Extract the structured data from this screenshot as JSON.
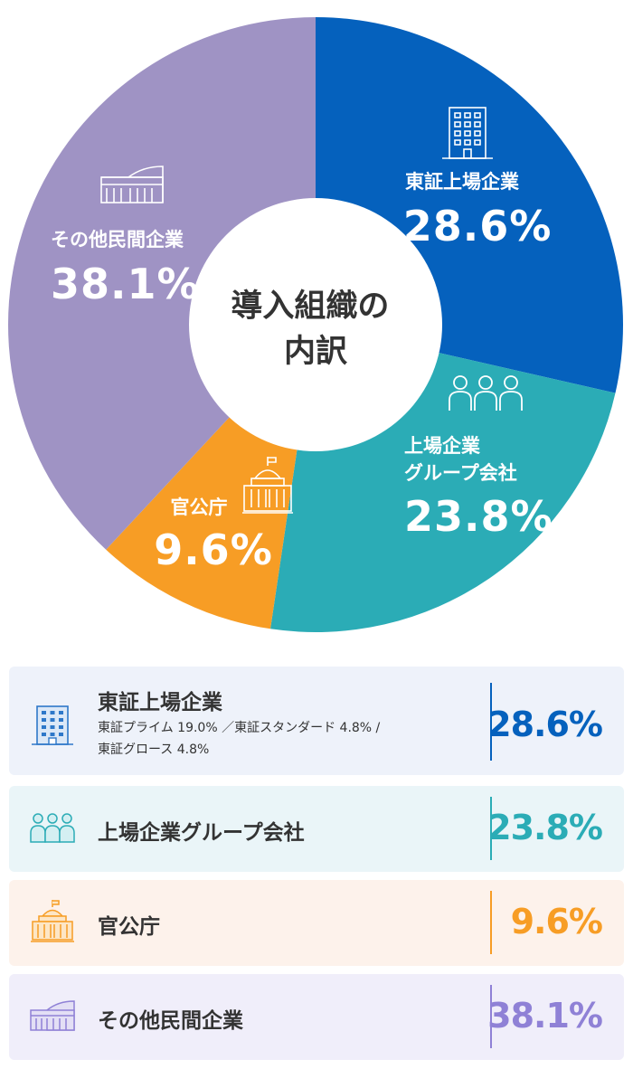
{
  "chart_data": {
    "type": "pie",
    "title": "導入組織の\n内訳",
    "unit": "%",
    "slices": [
      {
        "label": "東証上場企業",
        "value": 28.6,
        "value_label": "28.6%",
        "color": "#0561bd",
        "icon": "office-building-icon"
      },
      {
        "label": "上場企業\nグループ会社",
        "value": 23.8,
        "value_label": "23.8%",
        "color": "#2bacb6",
        "icon": "people-group-icon"
      },
      {
        "label": "官公庁",
        "value": 9.6,
        "value_label": "9.6%",
        "color": "#f79d25",
        "icon": "government-building-icon"
      },
      {
        "label": "その他民間企業",
        "value": 38.1,
        "value_label": "38.1%",
        "color": "#9f93c4",
        "icon": "commercial-building-icon"
      }
    ]
  },
  "legend": [
    {
      "title": "東証上場企業",
      "detail": "東証プライム 19.0% ／東証スタンダード 4.8% /\n東証グロース 4.8%",
      "value": "28.6%",
      "icon": "office-building-icon",
      "bg": "#eef2fa",
      "accent": "#0561bd"
    },
    {
      "title": "上場企業グループ会社",
      "value": "23.8%",
      "icon": "people-group-icon",
      "bg": "#eaf5f8",
      "accent": "#2bacb6"
    },
    {
      "title": "官公庁",
      "value": "9.6%",
      "icon": "government-building-icon",
      "bg": "#fdf2eb",
      "accent": "#f79d25"
    },
    {
      "title": "その他民間企業",
      "value": "38.1%",
      "icon": "commercial-building-icon",
      "bg": "#f0eefa",
      "accent": "#8f81d6"
    }
  ]
}
